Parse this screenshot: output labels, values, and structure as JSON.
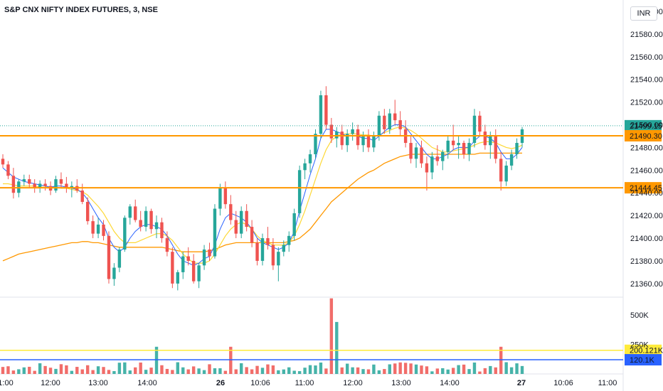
{
  "header": {
    "symbol_title": "S&P CNX NIFTY INDEX FUTURES, 3, NSE",
    "currency_button": "INR"
  },
  "colors": {
    "up": "#26a69a",
    "down": "#ef5350",
    "ma_fast": "#2962ff",
    "ma_mid": "#fdd835",
    "ma_slow": "#ff9800",
    "hline_price": "#ff9800",
    "vol_line_high": "#ffeb3b",
    "vol_line_low": "#2962ff",
    "last_price": "#26a69a"
  },
  "chart_data": [
    {
      "type": "candlestick",
      "yticks": [
        "21600.00",
        "21580.00",
        "21560.00",
        "21540.00",
        "21520.00",
        "21500.00",
        "21480.00",
        "21460.00",
        "21440.00",
        "21420.00",
        "21400.00",
        "21380.00",
        "21360.00"
      ],
      "ylim": [
        21348,
        21610
      ],
      "xticks": [
        "1:00",
        "12:00",
        "13:00",
        "14:00",
        "26",
        "10:06",
        "11:00",
        "12:00",
        "13:00",
        "14:00",
        "27",
        "10:06",
        "11:00"
      ],
      "last_price": "21499.15",
      "horizontal_levels": [
        {
          "label": "21490.30",
          "value": 21490.3
        },
        {
          "label": "21444.45",
          "value": 21444.45
        }
      ],
      "candles": [
        [
          21470,
          21474,
          21462,
          21465
        ],
        [
          21465,
          21468,
          21452,
          21455
        ],
        [
          21455,
          21462,
          21435,
          21440
        ],
        [
          21440,
          21452,
          21436,
          21450
        ],
        [
          21450,
          21456,
          21446,
          21452
        ],
        [
          21452,
          21456,
          21444,
          21448
        ],
        [
          21448,
          21452,
          21440,
          21444
        ],
        [
          21444,
          21451,
          21440,
          21448
        ],
        [
          21448,
          21452,
          21442,
          21446
        ],
        [
          21446,
          21450,
          21438,
          21442
        ],
        [
          21442,
          21455,
          21440,
          21452
        ],
        [
          21452,
          21458,
          21444,
          21448
        ],
        [
          21448,
          21454,
          21440,
          21444
        ],
        [
          21444,
          21450,
          21436,
          21446
        ],
        [
          21446,
          21452,
          21440,
          21442
        ],
        [
          21442,
          21448,
          21430,
          21432
        ],
        [
          21432,
          21436,
          21412,
          21415
        ],
        [
          21415,
          21420,
          21400,
          21404
        ],
        [
          21404,
          21418,
          21400,
          21412
        ],
        [
          21412,
          21416,
          21398,
          21402
        ],
        [
          21402,
          21406,
          21360,
          21364
        ],
        [
          21364,
          21378,
          21358,
          21374
        ],
        [
          21374,
          21392,
          21370,
          21390
        ],
        [
          21390,
          21420,
          21388,
          21418
        ],
        [
          21418,
          21430,
          21412,
          21428
        ],
        [
          21428,
          21434,
          21414,
          21416
        ],
        [
          21416,
          21424,
          21406,
          21410
        ],
        [
          21410,
          21428,
          21406,
          21424
        ],
        [
          21424,
          21426,
          21404,
          21408
        ],
        [
          21408,
          21420,
          21400,
          21414
        ],
        [
          21414,
          21418,
          21396,
          21400
        ],
        [
          21400,
          21406,
          21384,
          21388
        ],
        [
          21388,
          21392,
          21356,
          21360
        ],
        [
          21360,
          21372,
          21354,
          21370
        ],
        [
          21370,
          21388,
          21364,
          21384
        ],
        [
          21384,
          21392,
          21376,
          21380
        ],
        [
          21380,
          21386,
          21360,
          21362
        ],
        [
          21362,
          21378,
          21356,
          21376
        ],
        [
          21376,
          21394,
          21372,
          21390
        ],
        [
          21390,
          21396,
          21380,
          21384
        ],
        [
          21384,
          21430,
          21382,
          21426
        ],
        [
          21426,
          21448,
          21420,
          21444
        ],
        [
          21444,
          21450,
          21426,
          21430
        ],
        [
          21430,
          21438,
          21412,
          21416
        ],
        [
          21416,
          21424,
          21400,
          21404
        ],
        [
          21404,
          21428,
          21400,
          21424
        ],
        [
          21424,
          21430,
          21406,
          21410
        ],
        [
          21410,
          21416,
          21392,
          21396
        ],
        [
          21396,
          21400,
          21376,
          21380
        ],
        [
          21380,
          21404,
          21376,
          21400
        ],
        [
          21400,
          21410,
          21390,
          21394
        ],
        [
          21394,
          21400,
          21372,
          21376
        ],
        [
          21376,
          21392,
          21362,
          21388
        ],
        [
          21388,
          21398,
          21384,
          21394
        ],
        [
          21394,
          21406,
          21388,
          21402
        ],
        [
          21402,
          21426,
          21398,
          21422
        ],
        [
          21422,
          21464,
          21418,
          21460
        ],
        [
          21460,
          21470,
          21452,
          21466
        ],
        [
          21466,
          21478,
          21458,
          21474
        ],
        [
          21474,
          21496,
          21470,
          21492
        ],
        [
          21492,
          21530,
          21488,
          21526
        ],
        [
          21526,
          21534,
          21496,
          21500
        ],
        [
          21500,
          21506,
          21484,
          21488
        ],
        [
          21488,
          21498,
          21480,
          21494
        ],
        [
          21494,
          21500,
          21478,
          21482
        ],
        [
          21482,
          21496,
          21476,
          21492
        ],
        [
          21492,
          21502,
          21486,
          21496
        ],
        [
          21496,
          21500,
          21478,
          21482
        ],
        [
          21482,
          21494,
          21476,
          21490
        ],
        [
          21490,
          21496,
          21476,
          21480
        ],
        [
          21480,
          21494,
          21476,
          21490
        ],
        [
          21490,
          21512,
          21486,
          21508
        ],
        [
          21508,
          21514,
          21492,
          21496
        ],
        [
          21496,
          21514,
          21492,
          21510
        ],
        [
          21510,
          21522,
          21500,
          21504
        ],
        [
          21504,
          21512,
          21490,
          21496
        ],
        [
          21496,
          21504,
          21480,
          21484
        ],
        [
          21484,
          21490,
          21466,
          21470
        ],
        [
          21470,
          21484,
          21462,
          21480
        ],
        [
          21480,
          21486,
          21462,
          21466
        ],
        [
          21466,
          21472,
          21442,
          21458
        ],
        [
          21458,
          21476,
          21452,
          21472
        ],
        [
          21472,
          21482,
          21464,
          21468
        ],
        [
          21468,
          21478,
          21460,
          21476
        ],
        [
          21476,
          21490,
          21470,
          21486
        ],
        [
          21486,
          21500,
          21478,
          21482
        ],
        [
          21482,
          21490,
          21470,
          21484
        ],
        [
          21484,
          21486,
          21470,
          21474
        ],
        [
          21474,
          21488,
          21468,
          21484
        ],
        [
          21484,
          21514,
          21480,
          21508
        ],
        [
          21508,
          21512,
          21490,
          21494
        ],
        [
          21494,
          21500,
          21478,
          21482
        ],
        [
          21482,
          21494,
          21470,
          21490
        ],
        [
          21490,
          21496,
          21466,
          21470
        ],
        [
          21470,
          21476,
          21442,
          21450
        ],
        [
          21450,
          21468,
          21446,
          21464
        ],
        [
          21464,
          21478,
          21460,
          21474
        ],
        [
          21474,
          21488,
          21470,
          21484
        ],
        [
          21484,
          21498,
          21480,
          21496
        ]
      ],
      "ma_fast": [
        21462,
        21458,
        21454,
        21452,
        21450,
        21449,
        21448,
        21447,
        21446,
        21445,
        21446,
        21446,
        21445,
        21444,
        21443,
        21440,
        21434,
        21426,
        21418,
        21412,
        21400,
        21392,
        21388,
        21392,
        21400,
        21406,
        21410,
        21412,
        21412,
        21410,
        21408,
        21402,
        21394,
        21386,
        21380,
        21378,
        21376,
        21378,
        21382,
        21384,
        21394,
        21408,
        21418,
        21422,
        21420,
        21418,
        21414,
        21408,
        21400,
        21396,
        21394,
        21392,
        21390,
        21392,
        21396,
        21406,
        21424,
        21440,
        21456,
        21470,
        21488,
        21496,
        21496,
        21494,
        21492,
        21490,
        21490,
        21490,
        21488,
        21488,
        21486,
        21490,
        21494,
        21498,
        21500,
        21500,
        21498,
        21492,
        21486,
        21480,
        21474,
        21470,
        21470,
        21472,
        21474,
        21478,
        21480,
        21480,
        21480,
        21486,
        21490,
        21490,
        21488,
        21484,
        21476,
        21470,
        21470,
        21474,
        21480
      ],
      "ma_mid": [
        21448,
        21448,
        21447,
        21446,
        21446,
        21446,
        21446,
        21445,
        21445,
        21445,
        21445,
        21444,
        21444,
        21443,
        21442,
        21441,
        21438,
        21433,
        21428,
        21422,
        21414,
        21406,
        21400,
        21396,
        21396,
        21396,
        21398,
        21400,
        21402,
        21404,
        21404,
        21402,
        21398,
        21392,
        21386,
        21382,
        21378,
        21378,
        21378,
        21380,
        21386,
        21394,
        21402,
        21408,
        21412,
        21414,
        21412,
        21408,
        21402,
        21398,
        21396,
        21394,
        21394,
        21394,
        21396,
        21402,
        21412,
        21424,
        21438,
        21452,
        21466,
        21478,
        21486,
        21490,
        21492,
        21492,
        21492,
        21492,
        21491,
        21491,
        21490,
        21491,
        21493,
        21495,
        21497,
        21498,
        21497,
        21495,
        21492,
        21488,
        21484,
        21480,
        21478,
        21476,
        21476,
        21477,
        21478,
        21479,
        21480,
        21482,
        21484,
        21485,
        21485,
        21484,
        21482,
        21480,
        21479,
        21480,
        21482
      ],
      "ma_slow": [
        21380,
        21382,
        21384,
        21386,
        21387,
        21388,
        21389,
        21390,
        21391,
        21392,
        21393,
        21394,
        21395,
        21396,
        21396,
        21397,
        21397,
        21396,
        21396,
        21395,
        21394,
        21393,
        21392,
        21392,
        21392,
        21392,
        21392,
        21392,
        21392,
        21392,
        21392,
        21391,
        21390,
        21389,
        21388,
        21388,
        21388,
        21388,
        21388,
        21389,
        21390,
        21392,
        21394,
        21395,
        21396,
        21396,
        21396,
        21396,
        21396,
        21396,
        21396,
        21396,
        21396,
        21396,
        21397,
        21398,
        21400,
        21404,
        21408,
        21414,
        21420,
        21426,
        21432,
        21436,
        21440,
        21444,
        21448,
        21452,
        21455,
        21458,
        21460,
        21463,
        21466,
        21468,
        21470,
        21472,
        21473,
        21474,
        21474,
        21474,
        21474,
        21474,
        21474,
        21474,
        21474,
        21474,
        21474,
        21474,
        21474,
        21474,
        21475,
        21475,
        21475,
        21475,
        21475,
        21475,
        21475,
        21475,
        21475
      ],
      "volume": {
        "ytick": "500K",
        "ytick_partial": "250K",
        "levels": [
          {
            "label": "200.121K",
            "value": 200121
          },
          {
            "label": "120.1K",
            "value": 120100
          }
        ],
        "max": 650000
      }
    }
  ]
}
